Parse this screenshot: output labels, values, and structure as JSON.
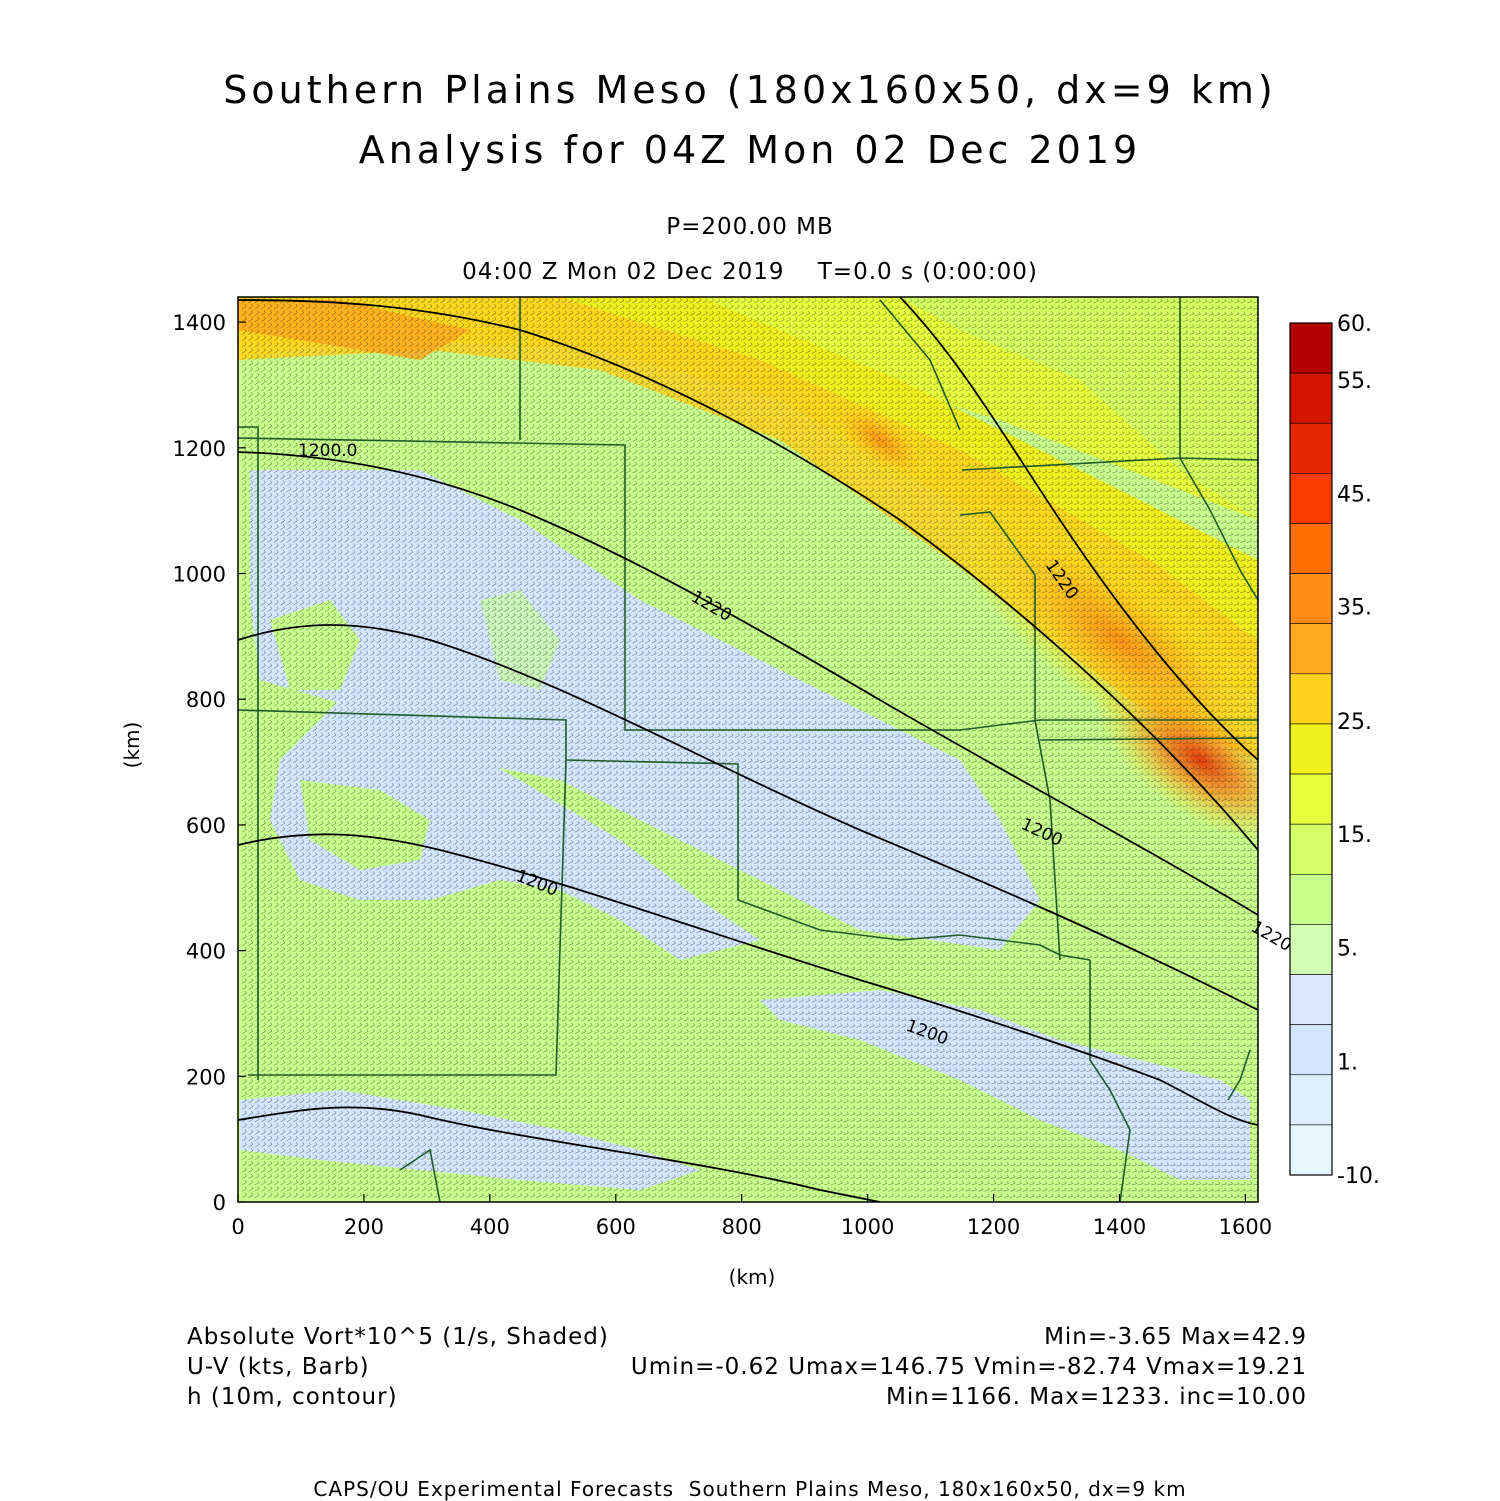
{
  "header": {
    "title_line1": "Southern Plains Meso (180x160x50, dx=9 km)",
    "title_line2": "Analysis for 04Z Mon 02 Dec 2019",
    "level": "P=200.00 MB",
    "time": "04:00 Z Mon 02 Dec 2019    T=0.0 s (0:00:00)"
  },
  "axes": {
    "xlabel": "(km)",
    "ylabel": "(km)",
    "xticks": [
      "0",
      "200",
      "400",
      "600",
      "800",
      "1000",
      "1200",
      "1400",
      "1600"
    ],
    "yticks": [
      "0",
      "200",
      "400",
      "600",
      "800",
      "1000",
      "1200",
      "1400"
    ],
    "xlim": [
      0,
      1620
    ],
    "ylim": [
      0,
      1440
    ]
  },
  "colorbar": {
    "labels": [
      "60.",
      "55.",
      "45.",
      "35.",
      "25.",
      "15.",
      "5.",
      "1.",
      "-10."
    ],
    "colors": [
      "#b40000",
      "#d21400",
      "#e62800",
      "#ff3c00",
      "#ff6e00",
      "#ff8c14",
      "#ffaa1e",
      "#ffd21e",
      "#f0f01e",
      "#e6ff3c",
      "#d2ff64",
      "#c8ff8c",
      "#d2ffb4",
      "#dce6ff",
      "#d2e6ff",
      "#dcf0ff",
      "#e6f8ff"
    ]
  },
  "contours": {
    "labels": [
      "1200.0",
      "1220",
      "1220",
      "1200",
      "1200",
      "1200",
      "1220"
    ]
  },
  "legend": {
    "field1_name": "Absolute Vort*10^5 (1/s, Shaded)",
    "field1_stats": "Min=-3.65 Max=42.9",
    "field2_name": "U-V (kts, Barb)",
    "field2_stats": "Umin=-0.62 Umax=146.75 Vmin=-82.74 Vmax=19.21",
    "field3_name": "h (10m, contour)",
    "field3_stats": "Min=1166. Max=1233. inc=10.00"
  },
  "footer": "CAPS/OU Experimental Forecasts  Southern Plains Meso, 180x160x50, dx=9 km"
}
